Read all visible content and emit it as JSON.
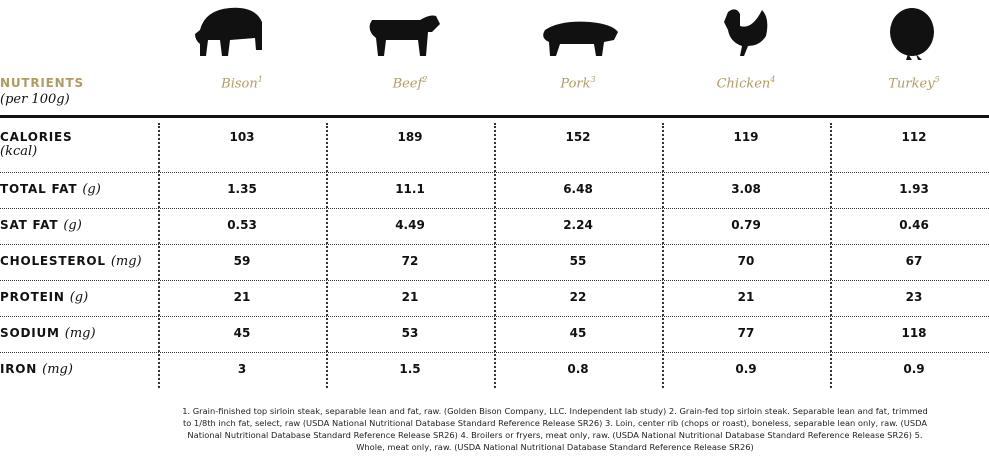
{
  "header": {
    "title": "NUTRIENTS",
    "subtitle": "(per 100g)"
  },
  "columns": [
    {
      "name": "Bison",
      "note": "1"
    },
    {
      "name": "Beef",
      "note": "2"
    },
    {
      "name": "Pork",
      "note": "3"
    },
    {
      "name": "Chicken",
      "note": "4"
    },
    {
      "name": "Turkey",
      "note": "5"
    }
  ],
  "rows": [
    {
      "label": "CALORIES",
      "unit": "(kcal)",
      "values": [
        103,
        189,
        152,
        119,
        112
      ]
    },
    {
      "label": "TOTAL FAT",
      "unit": "(g)",
      "values": [
        1.35,
        11.1,
        6.48,
        3.08,
        1.93
      ]
    },
    {
      "label": "SAT FAT",
      "unit": "(g)",
      "values": [
        0.53,
        4.49,
        2.24,
        0.79,
        0.46
      ]
    },
    {
      "label": "CHOLESTEROL",
      "unit": "(mg)",
      "values": [
        59,
        72,
        55,
        70,
        67
      ]
    },
    {
      "label": "PROTEIN",
      "unit": "(g)",
      "values": [
        21,
        21,
        22,
        21,
        23
      ]
    },
    {
      "label": "SODIUM",
      "unit": "(mg)",
      "values": [
        45,
        53,
        45,
        77,
        118
      ]
    },
    {
      "label": "IRON",
      "unit": "(mg)",
      "values": [
        3,
        1.5,
        0.8,
        0.9,
        0.9
      ]
    }
  ],
  "footnote": "1. Grain-finished top sirloin steak, separable lean and fat, raw. (Golden Bison Company, LLC. Independent lab study) 2. Grain-fed top sirloin steak. Separable lean and fat, trimmed to 1/8th inch fat, select, raw (USDA National Nutritional Database Standard Reference Release SR26) 3. Loin, center rib (chops or roast), boneless, separable lean only, raw. (USDA National Nutritional Database Standard Reference Release SR26) 4. Broilers or fryers, meat only, raw. (USDA National Nutritional Database Standard Reference Release SR26) 5. Whole, meat only, raw. (USDA National Nutritional Database Standard Reference Release SR26)"
}
